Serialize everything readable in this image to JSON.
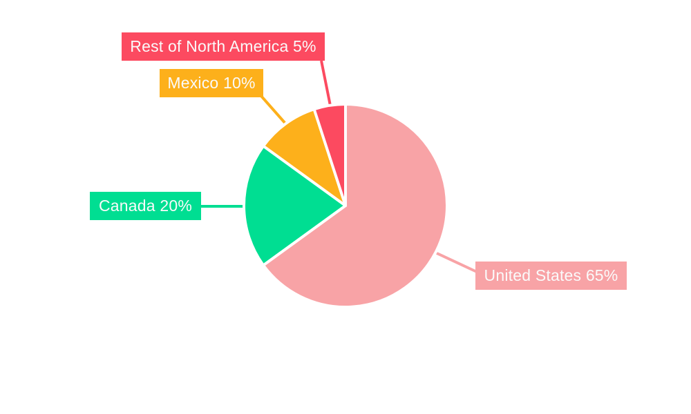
{
  "chart_data": {
    "type": "pie",
    "title": "",
    "unit": "%",
    "direction": "clockwise",
    "start_angle_deg": 0,
    "legend": "none",
    "label_style": "callout-boxes-with-leader-lines",
    "background": "#FFFFFF",
    "label_text_color": "#FAFAFA",
    "slice_gap_color": "#FFFFFF",
    "slices": [
      {
        "label": "United States",
        "value": 65,
        "pct_text": "65%",
        "label_text": "United States 65%",
        "color": "#F8A3A6"
      },
      {
        "label": "Canada",
        "value": 20,
        "pct_text": "20%",
        "label_text": "Canada 20%",
        "color": "#00DE92"
      },
      {
        "label": "Mexico",
        "value": 10,
        "pct_text": "10%",
        "label_text": "Mexico 10%",
        "color": "#FDB01B"
      },
      {
        "label": "Rest of North America",
        "value": 5,
        "pct_text": "5%",
        "label_text": "Rest of North America 5%",
        "color": "#FC4A60"
      }
    ]
  }
}
